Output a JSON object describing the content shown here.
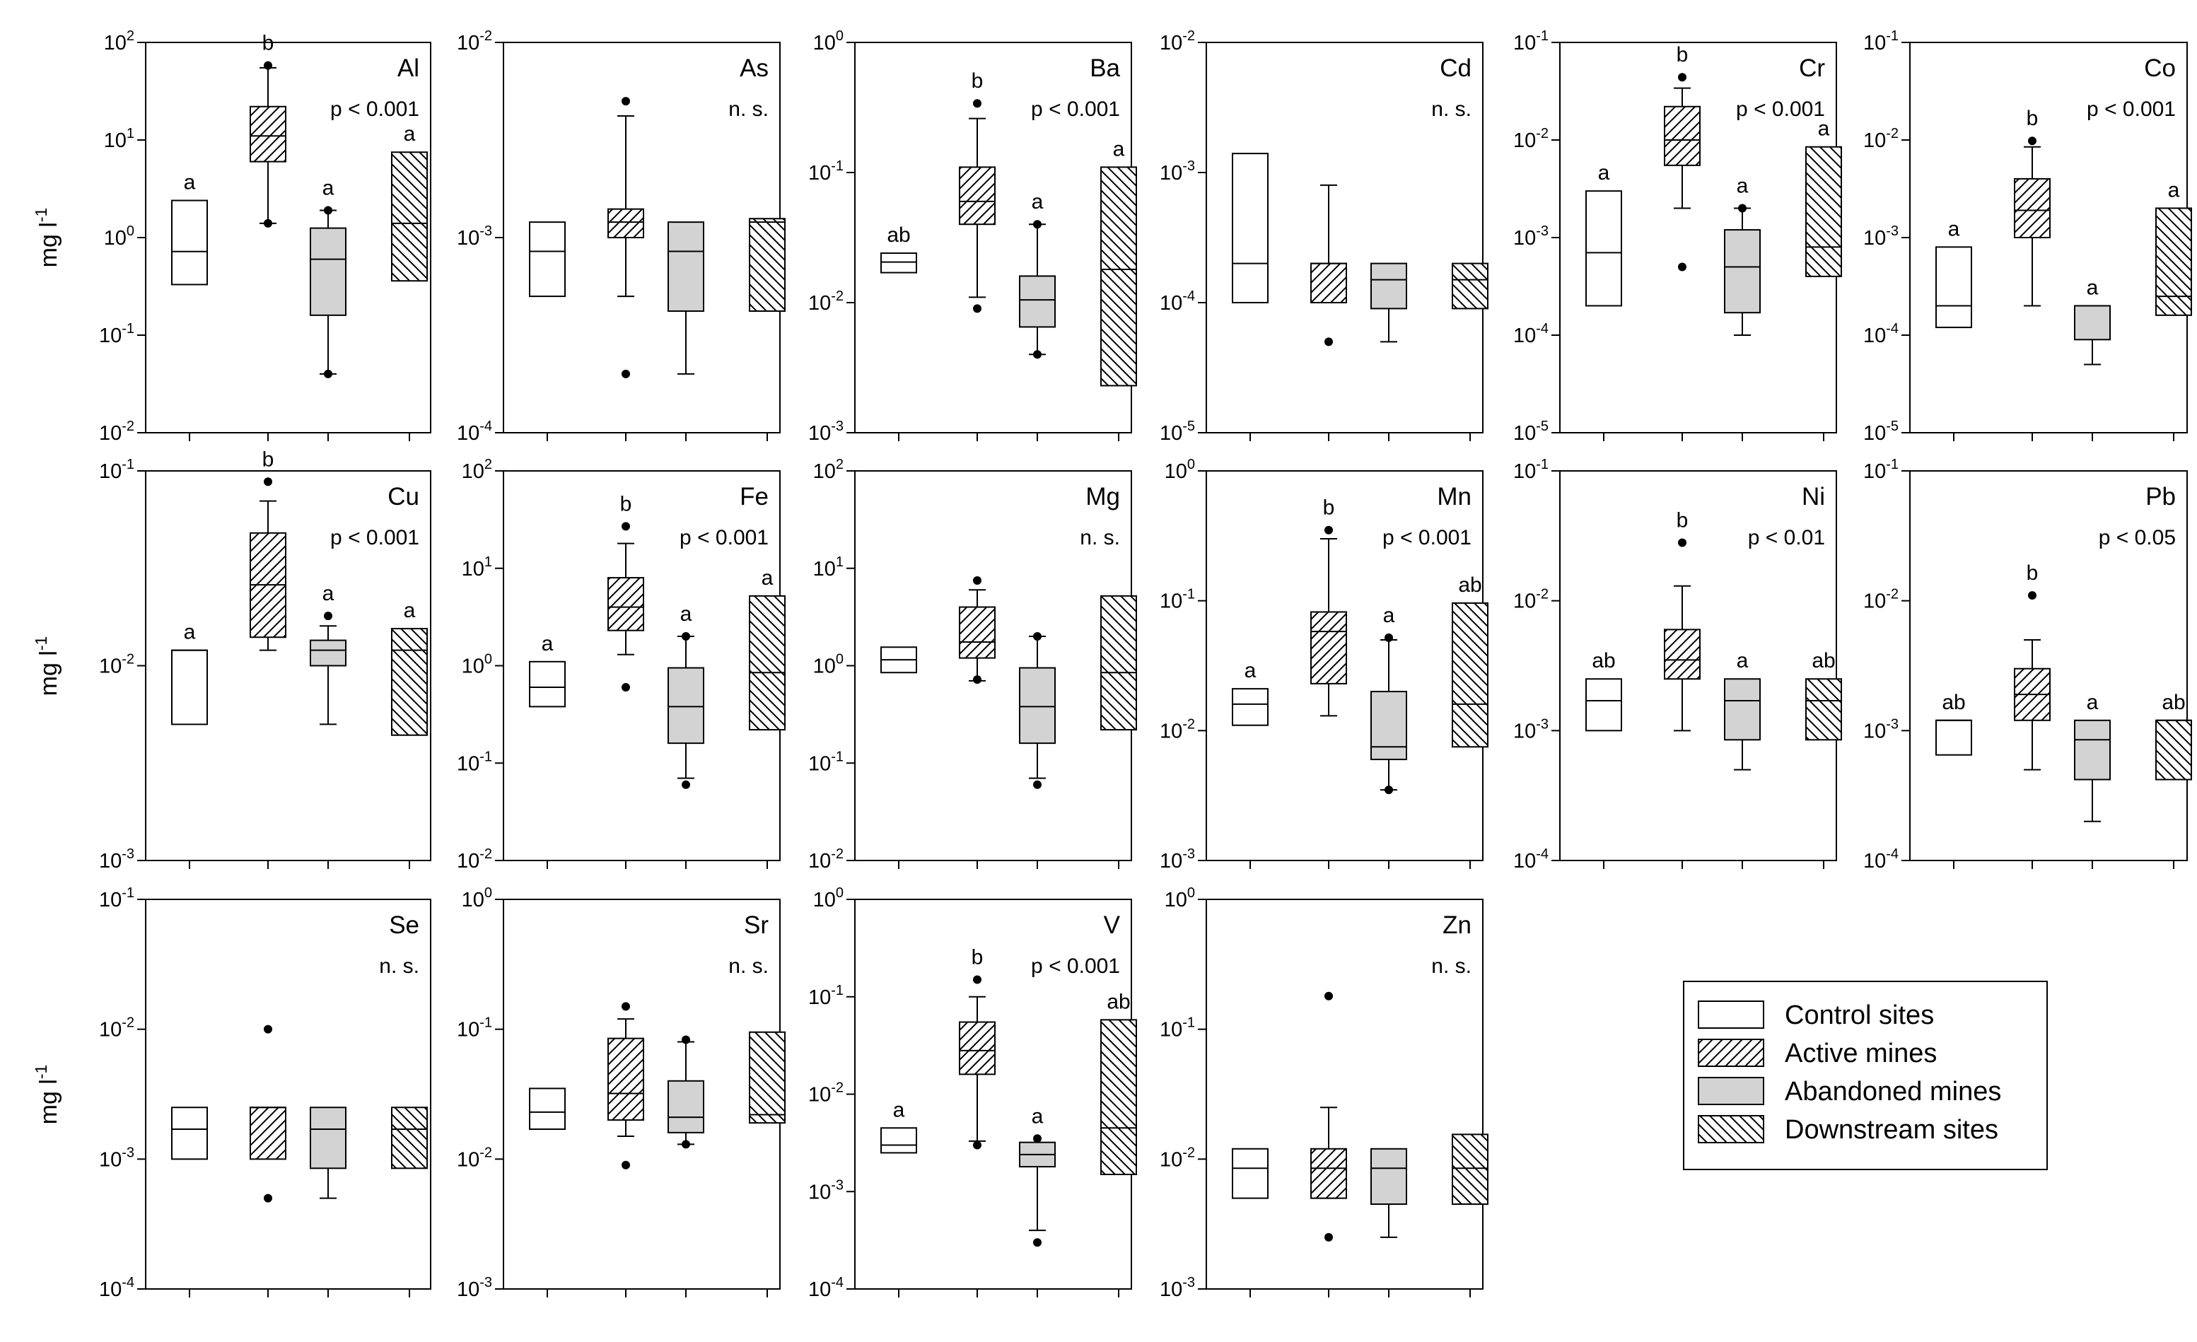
{
  "figure": {
    "ylabel": "mg l",
    "ylabel_exp": "-1",
    "legend": [
      {
        "label": "Control sites",
        "fill": "white"
      },
      {
        "label": "Active mines",
        "fill": "hatch-fwd"
      },
      {
        "label": "Abandoned mines",
        "fill": "grey"
      },
      {
        "label": "Downstream sites",
        "fill": "hatch-back"
      }
    ]
  },
  "colors": {
    "grey_fill": "#d3d3d3",
    "line": "#000000",
    "background": "#ffffff"
  },
  "chart_data": [
    {
      "type": "box",
      "title": "Al",
      "stat": "p < 0.001",
      "scale": "log",
      "ylim_exp": [
        -2,
        2
      ],
      "letters": [
        "a",
        "b",
        "a",
        "a"
      ],
      "boxes": [
        {
          "q1": 0.33,
          "median": 0.72,
          "q3": 2.4
        },
        {
          "whisker_low": 1.4,
          "q1": 6,
          "median": 11,
          "q3": 22,
          "whisker_high": 55,
          "outliers": [
            1.4,
            58
          ]
        },
        {
          "whisker_low": 0.04,
          "q1": 0.16,
          "median": 0.6,
          "q3": 1.25,
          "whisker_high": 1.9,
          "outliers": [
            0.04,
            1.9
          ]
        },
        {
          "q1": 0.36,
          "median": 1.4,
          "q3": 7.5
        }
      ]
    },
    {
      "type": "box",
      "title": "As",
      "stat": "n. s.",
      "scale": "log",
      "ylim_exp": [
        -4,
        -2
      ],
      "letters": [
        "",
        "",
        "",
        ""
      ],
      "boxes": [
        {
          "q1": 0.0005,
          "median": 0.00085,
          "q3": 0.0012
        },
        {
          "whisker_low": 0.0005,
          "q1": 0.001,
          "median": 0.0012,
          "q3": 0.0014,
          "whisker_high": 0.0042,
          "outliers": [
            0.0002,
            0.005
          ]
        },
        {
          "whisker_low": 0.0002,
          "q1": 0.00042,
          "median": 0.00085,
          "q3": 0.0012
        },
        {
          "q1": 0.00042,
          "median": 0.0012,
          "q3": 0.00125
        }
      ]
    },
    {
      "type": "box",
      "title": "Ba",
      "stat": "p < 0.001",
      "scale": "log",
      "ylim_exp": [
        -3,
        0
      ],
      "letters": [
        "ab",
        "b",
        "a",
        "a"
      ],
      "boxes": [
        {
          "q1": 0.017,
          "median": 0.0205,
          "q3": 0.024
        },
        {
          "whisker_low": 0.011,
          "q1": 0.04,
          "median": 0.06,
          "q3": 0.11,
          "whisker_high": 0.26,
          "outliers": [
            0.009,
            0.34
          ]
        },
        {
          "whisker_low": 0.004,
          "q1": 0.0065,
          "median": 0.0105,
          "q3": 0.016,
          "whisker_high": 0.04,
          "outliers": [
            0.004,
            0.04
          ]
        },
        {
          "q1": 0.0023,
          "median": 0.018,
          "q3": 0.11
        }
      ]
    },
    {
      "type": "box",
      "title": "Cd",
      "stat": "n. s.",
      "scale": "log",
      "ylim_exp": [
        -5,
        -2
      ],
      "letters": [
        "",
        "",
        "",
        ""
      ],
      "boxes": [
        {
          "q1": 0.0001,
          "median": 0.0002,
          "q3": 0.0014
        },
        {
          "q1": 0.0001,
          "median": 0.0002,
          "q3": 0.0002,
          "whisker_high": 0.0008,
          "outliers": [
            5e-05
          ]
        },
        {
          "whisker_low": 5e-05,
          "q1": 9e-05,
          "median": 0.00015,
          "q3": 0.0002
        },
        {
          "q1": 9e-05,
          "median": 0.00015,
          "q3": 0.0002
        }
      ]
    },
    {
      "type": "box",
      "title": "Cr",
      "stat": "p < 0.001",
      "scale": "log",
      "ylim_exp": [
        -5,
        -1
      ],
      "letters": [
        "a",
        "b",
        "a",
        "a"
      ],
      "boxes": [
        {
          "q1": 0.0002,
          "median": 0.0007,
          "q3": 0.003
        },
        {
          "whisker_low": 0.002,
          "q1": 0.0055,
          "median": 0.01,
          "q3": 0.022,
          "whisker_high": 0.034,
          "outliers": [
            0.0005,
            0.044
          ]
        },
        {
          "whisker_low": 0.0001,
          "q1": 0.00017,
          "median": 0.0005,
          "q3": 0.0012,
          "whisker_high": 0.002,
          "outliers": [
            0.002
          ]
        },
        {
          "q1": 0.0004,
          "median": 0.0008,
          "q3": 0.0085
        }
      ]
    },
    {
      "type": "box",
      "title": "Co",
      "stat": "p < 0.001",
      "scale": "log",
      "ylim_exp": [
        -5,
        -1
      ],
      "letters": [
        "a",
        "b",
        "a",
        "a"
      ],
      "boxes": [
        {
          "q1": 0.00012,
          "median": 0.0002,
          "q3": 0.0008
        },
        {
          "whisker_low": 0.0002,
          "q1": 0.001,
          "median": 0.0019,
          "q3": 0.004,
          "whisker_high": 0.0085,
          "outliers": [
            0.0098
          ]
        },
        {
          "whisker_low": 5e-05,
          "q1": 9e-05,
          "median": 0.0002,
          "q3": 0.0002
        },
        {
          "q1": 0.00016,
          "median": 0.00025,
          "q3": 0.002
        }
      ]
    },
    {
      "type": "box",
      "title": "Cu",
      "stat": "p < 0.001",
      "scale": "log",
      "ylim_exp": [
        -3,
        -1
      ],
      "letters": [
        "a",
        "b",
        "a",
        "a"
      ],
      "boxes": [
        {
          "q1": 0.005,
          "median": 0.012,
          "q3": 0.012
        },
        {
          "whisker_low": 0.012,
          "q1": 0.014,
          "median": 0.026,
          "q3": 0.048,
          "whisker_high": 0.07,
          "outliers": [
            0.088
          ]
        },
        {
          "whisker_low": 0.005,
          "q1": 0.01,
          "median": 0.012,
          "q3": 0.0135,
          "whisker_high": 0.016,
          "outliers": [
            0.018
          ]
        },
        {
          "q1": 0.0044,
          "median": 0.012,
          "q3": 0.0155
        }
      ]
    },
    {
      "type": "box",
      "title": "Fe",
      "stat": "p < 0.001",
      "scale": "log",
      "ylim_exp": [
        -2,
        2
      ],
      "letters": [
        "a",
        "b",
        "a",
        "a"
      ],
      "boxes": [
        {
          "q1": 0.38,
          "median": 0.6,
          "q3": 1.1
        },
        {
          "whisker_low": 1.3,
          "q1": 2.3,
          "median": 4,
          "q3": 8,
          "whisker_high": 18,
          "outliers": [
            0.6,
            27
          ]
        },
        {
          "whisker_low": 0.07,
          "q1": 0.16,
          "median": 0.38,
          "q3": 0.95,
          "whisker_high": 2,
          "outliers": [
            0.06,
            2
          ]
        },
        {
          "q1": 0.22,
          "median": 0.85,
          "q3": 5.2
        }
      ]
    },
    {
      "type": "box",
      "title": "Mg",
      "stat": "n. s.",
      "scale": "log",
      "ylim_exp": [
        -2,
        2
      ],
      "letters": [
        "",
        "",
        "",
        ""
      ],
      "boxes": [
        {
          "q1": 0.85,
          "median": 1.15,
          "q3": 1.55
        },
        {
          "whisker_low": 0.7,
          "q1": 1.2,
          "median": 1.75,
          "q3": 4,
          "whisker_high": 6,
          "outliers": [
            0.72,
            7.5
          ]
        },
        {
          "whisker_low": 0.07,
          "q1": 0.16,
          "median": 0.38,
          "q3": 0.95,
          "whisker_high": 2,
          "outliers": [
            0.06,
            2
          ]
        },
        {
          "q1": 0.22,
          "median": 0.85,
          "q3": 5.2
        }
      ]
    },
    {
      "type": "box",
      "title": "Mn",
      "stat": "p < 0.001",
      "scale": "log",
      "ylim_exp": [
        -3,
        0
      ],
      "letters": [
        "a",
        "b",
        "a",
        "ab"
      ],
      "boxes": [
        {
          "q1": 0.011,
          "median": 0.016,
          "q3": 0.021
        },
        {
          "whisker_low": 0.013,
          "q1": 0.023,
          "median": 0.058,
          "q3": 0.082,
          "whisker_high": 0.3,
          "outliers": [
            0.35
          ]
        },
        {
          "whisker_low": 0.0035,
          "q1": 0.006,
          "median": 0.0075,
          "q3": 0.02,
          "whisker_high": 0.05,
          "outliers": [
            0.0035,
            0.052
          ]
        },
        {
          "q1": 0.0075,
          "median": 0.016,
          "q3": 0.096
        }
      ]
    },
    {
      "type": "box",
      "title": "Ni",
      "stat": "p < 0.01",
      "scale": "log",
      "ylim_exp": [
        -4,
        -1
      ],
      "letters": [
        "ab",
        "b",
        "a",
        "ab"
      ],
      "boxes": [
        {
          "q1": 0.001,
          "median": 0.0017,
          "q3": 0.0025
        },
        {
          "whisker_low": 0.001,
          "q1": 0.0025,
          "median": 0.0035,
          "q3": 0.006,
          "whisker_high": 0.013,
          "outliers": [
            0.028
          ]
        },
        {
          "whisker_low": 0.0005,
          "q1": 0.00085,
          "median": 0.0017,
          "q3": 0.0025
        },
        {
          "q1": 0.00085,
          "median": 0.0017,
          "q3": 0.0025
        }
      ]
    },
    {
      "type": "box",
      "title": "Pb",
      "stat": "p < 0.05",
      "scale": "log",
      "ylim_exp": [
        -4,
        -1
      ],
      "letters": [
        "ab",
        "b",
        "a",
        "ab"
      ],
      "boxes": [
        {
          "q1": 0.00065,
          "median": 0.0012,
          "q3": 0.0012
        },
        {
          "whisker_low": 0.0005,
          "q1": 0.0012,
          "median": 0.0019,
          "q3": 0.003,
          "whisker_high": 0.005,
          "outliers": [
            0.011
          ]
        },
        {
          "whisker_low": 0.0002,
          "q1": 0.00042,
          "median": 0.00085,
          "q3": 0.0012
        },
        {
          "q1": 0.00042,
          "median": 0.0012,
          "q3": 0.0012
        }
      ]
    },
    {
      "type": "box",
      "title": "Se",
      "stat": "n. s.",
      "scale": "log",
      "ylim_exp": [
        -4,
        -1
      ],
      "letters": [
        "",
        "",
        "",
        ""
      ],
      "boxes": [
        {
          "q1": 0.001,
          "median": 0.0017,
          "q3": 0.0025
        },
        {
          "q1": 0.001,
          "median": 0.0025,
          "q3": 0.0025,
          "outliers": [
            0.0005,
            0.01
          ]
        },
        {
          "whisker_low": 0.0005,
          "q1": 0.00085,
          "median": 0.0017,
          "q3": 0.0025
        },
        {
          "q1": 0.00085,
          "median": 0.0017,
          "q3": 0.0025
        }
      ]
    },
    {
      "type": "box",
      "title": "Sr",
      "stat": "n. s.",
      "scale": "log",
      "ylim_exp": [
        -3,
        0
      ],
      "letters": [
        "",
        "",
        "",
        ""
      ],
      "boxes": [
        {
          "q1": 0.017,
          "median": 0.023,
          "q3": 0.035
        },
        {
          "whisker_low": 0.015,
          "q1": 0.02,
          "median": 0.032,
          "q3": 0.085,
          "whisker_high": 0.12,
          "outliers": [
            0.009,
            0.15
          ]
        },
        {
          "whisker_low": 0.013,
          "q1": 0.016,
          "median": 0.021,
          "q3": 0.04,
          "whisker_high": 0.08,
          "outliers": [
            0.013,
            0.083
          ]
        },
        {
          "q1": 0.019,
          "median": 0.022,
          "q3": 0.095
        }
      ]
    },
    {
      "type": "box",
      "title": "V",
      "stat": "p < 0.001",
      "scale": "log",
      "ylim_exp": [
        -4,
        0
      ],
      "letters": [
        "a",
        "b",
        "a",
        "ab"
      ],
      "boxes": [
        {
          "q1": 0.0025,
          "median": 0.003,
          "q3": 0.0045
        },
        {
          "whisker_low": 0.0033,
          "q1": 0.016,
          "median": 0.028,
          "q3": 0.055,
          "whisker_high": 0.1,
          "outliers": [
            0.003,
            0.15
          ]
        },
        {
          "whisker_low": 0.0004,
          "q1": 0.0018,
          "median": 0.0024,
          "q3": 0.0032,
          "outliers": [
            0.0003,
            0.0035
          ]
        },
        {
          "q1": 0.0015,
          "median": 0.0045,
          "q3": 0.058
        }
      ]
    },
    {
      "type": "box",
      "title": "Zn",
      "stat": "n. s.",
      "scale": "log",
      "ylim_exp": [
        -3,
        0
      ],
      "letters": [
        "",
        "",
        "",
        ""
      ],
      "boxes": [
        {
          "q1": 0.005,
          "median": 0.0085,
          "q3": 0.012
        },
        {
          "whisker_low": 0.005,
          "q1": 0.005,
          "median": 0.0085,
          "q3": 0.012,
          "whisker_high": 0.025,
          "outliers": [
            0.0025,
            0.18
          ]
        },
        {
          "whisker_low": 0.0025,
          "q1": 0.0045,
          "median": 0.0085,
          "q3": 0.012
        },
        {
          "q1": 0.0045,
          "median": 0.0085,
          "q3": 0.0155
        }
      ]
    }
  ]
}
